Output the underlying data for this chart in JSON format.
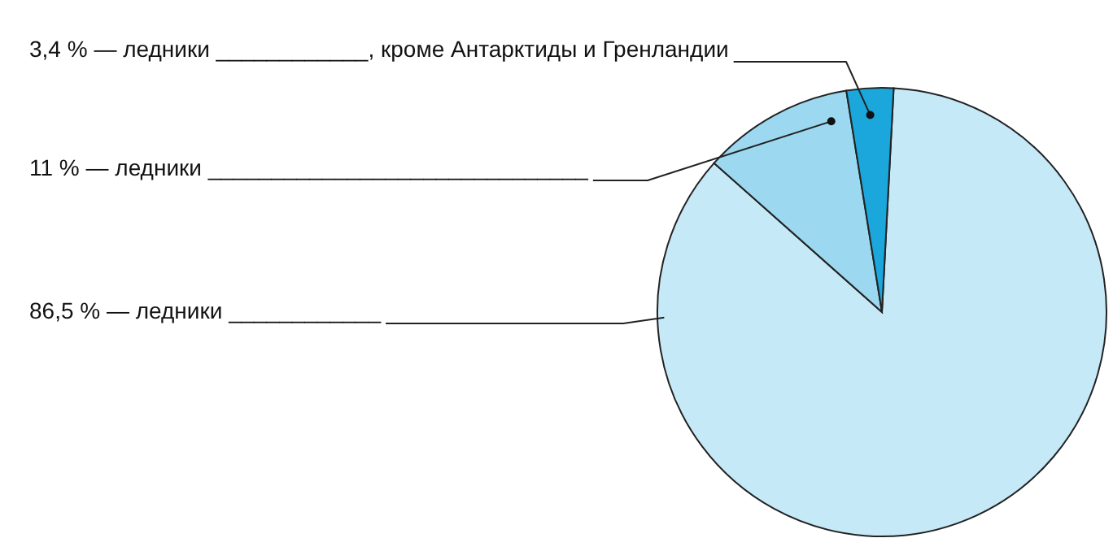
{
  "chart_data": {
    "type": "pie",
    "categories": [
      "86,5 % — ледники ____________",
      "11 % — ледники ______________________________",
      "3,4 % — ледники ____________, кроме Антарктиды и Гренландии"
    ],
    "values": [
      86.5,
      11,
      3.4
    ],
    "colors": [
      "#c6e9f7",
      "#9cd8ef",
      "#1ba6dc"
    ]
  }
}
